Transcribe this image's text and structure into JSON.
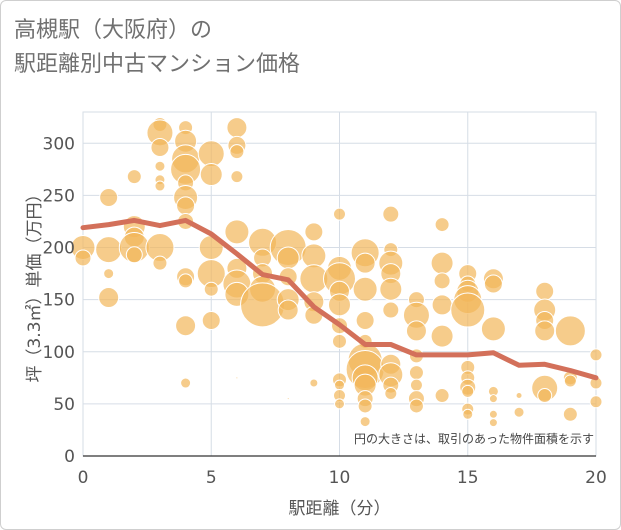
{
  "title_lines": [
    "高槻駅（大阪府）の",
    "駅距離別中古マンション価格"
  ],
  "chart_data": {
    "type": "scatter",
    "xlabel": "駅距離（分）",
    "ylabel": "坪（3.3㎡）単価（万円）",
    "xlim": [
      0,
      20
    ],
    "ylim": [
      0,
      330
    ],
    "xticks": [
      0,
      5,
      10,
      15,
      20
    ],
    "yticks": [
      0,
      50,
      100,
      150,
      200,
      250,
      300
    ],
    "grid": true,
    "note": "円の大きさは、取引のあった物件面積を示す",
    "colors": {
      "bubble": "#f2b65a",
      "line": "#d3705a"
    },
    "series": [
      {
        "kind": "bubble",
        "points": [
          {
            "x": 0,
            "y": 200,
            "s": 12
          },
          {
            "x": 0,
            "y": 190,
            "s": 8
          },
          {
            "x": 1,
            "y": 248,
            "s": 9
          },
          {
            "x": 1,
            "y": 198,
            "s": 13
          },
          {
            "x": 1,
            "y": 175,
            "s": 5
          },
          {
            "x": 1,
            "y": 152,
            "s": 10
          },
          {
            "x": 2,
            "y": 268,
            "s": 7
          },
          {
            "x": 2,
            "y": 220,
            "s": 11
          },
          {
            "x": 2,
            "y": 210,
            "s": 10
          },
          {
            "x": 2,
            "y": 200,
            "s": 15
          },
          {
            "x": 2,
            "y": 193,
            "s": 8
          },
          {
            "x": 3,
            "y": 318,
            "s": 7
          },
          {
            "x": 3,
            "y": 310,
            "s": 13
          },
          {
            "x": 3,
            "y": 296,
            "s": 9
          },
          {
            "x": 3,
            "y": 278,
            "s": 5
          },
          {
            "x": 3,
            "y": 265,
            "s": 5
          },
          {
            "x": 3,
            "y": 259,
            "s": 5
          },
          {
            "x": 3,
            "y": 200,
            "s": 14
          },
          {
            "x": 3,
            "y": 185,
            "s": 7
          },
          {
            "x": 4,
            "y": 315,
            "s": 7
          },
          {
            "x": 4,
            "y": 302,
            "s": 11
          },
          {
            "x": 4,
            "y": 285,
            "s": 14
          },
          {
            "x": 4,
            "y": 275,
            "s": 15
          },
          {
            "x": 4,
            "y": 262,
            "s": 8
          },
          {
            "x": 4,
            "y": 248,
            "s": 12
          },
          {
            "x": 4,
            "y": 240,
            "s": 9
          },
          {
            "x": 4,
            "y": 225,
            "s": 8
          },
          {
            "x": 4,
            "y": 172,
            "s": 9
          },
          {
            "x": 4,
            "y": 168,
            "s": 7
          },
          {
            "x": 4,
            "y": 125,
            "s": 10
          },
          {
            "x": 4,
            "y": 70,
            "s": 5
          },
          {
            "x": 5,
            "y": 290,
            "s": 13
          },
          {
            "x": 5,
            "y": 270,
            "s": 11
          },
          {
            "x": 5,
            "y": 200,
            "s": 12
          },
          {
            "x": 5,
            "y": 175,
            "s": 14
          },
          {
            "x": 5,
            "y": 160,
            "s": 7
          },
          {
            "x": 5,
            "y": 130,
            "s": 9
          },
          {
            "x": 6,
            "y": 315,
            "s": 10
          },
          {
            "x": 6,
            "y": 298,
            "s": 9
          },
          {
            "x": 6,
            "y": 292,
            "s": 7
          },
          {
            "x": 6,
            "y": 268,
            "s": 6
          },
          {
            "x": 6,
            "y": 215,
            "s": 12
          },
          {
            "x": 6,
            "y": 180,
            "s": 10
          },
          {
            "x": 6,
            "y": 165,
            "s": 14
          },
          {
            "x": 6,
            "y": 155,
            "s": 12
          },
          {
            "x": 6,
            "y": 75,
            "s": 1
          },
          {
            "x": 7,
            "y": 205,
            "s": 14
          },
          {
            "x": 7,
            "y": 190,
            "s": 9
          },
          {
            "x": 7,
            "y": 175,
            "s": 10
          },
          {
            "x": 7,
            "y": 160,
            "s": 13
          },
          {
            "x": 7,
            "y": 145,
            "s": 22
          },
          {
            "x": 8,
            "y": 200,
            "s": 18
          },
          {
            "x": 8,
            "y": 190,
            "s": 11
          },
          {
            "x": 8,
            "y": 172,
            "s": 9
          },
          {
            "x": 8,
            "y": 150,
            "s": 11
          },
          {
            "x": 8,
            "y": 140,
            "s": 10
          },
          {
            "x": 8,
            "y": 55,
            "s": 1
          },
          {
            "x": 9,
            "y": 215,
            "s": 9
          },
          {
            "x": 9,
            "y": 192,
            "s": 12
          },
          {
            "x": 9,
            "y": 170,
            "s": 14
          },
          {
            "x": 9,
            "y": 148,
            "s": 10
          },
          {
            "x": 9,
            "y": 135,
            "s": 9
          },
          {
            "x": 9,
            "y": 70,
            "s": 4
          },
          {
            "x": 10,
            "y": 232,
            "s": 6
          },
          {
            "x": 10,
            "y": 180,
            "s": 12
          },
          {
            "x": 10,
            "y": 170,
            "s": 16
          },
          {
            "x": 10,
            "y": 158,
            "s": 10
          },
          {
            "x": 10,
            "y": 145,
            "s": 11
          },
          {
            "x": 10,
            "y": 125,
            "s": 8
          },
          {
            "x": 10,
            "y": 110,
            "s": 7
          },
          {
            "x": 10,
            "y": 73,
            "s": 7
          },
          {
            "x": 10,
            "y": 68,
            "s": 5
          },
          {
            "x": 10,
            "y": 58,
            "s": 6
          },
          {
            "x": 10,
            "y": 50,
            "s": 5
          },
          {
            "x": 11,
            "y": 195,
            "s": 14
          },
          {
            "x": 11,
            "y": 185,
            "s": 10
          },
          {
            "x": 11,
            "y": 160,
            "s": 12
          },
          {
            "x": 11,
            "y": 130,
            "s": 9
          },
          {
            "x": 11,
            "y": 110,
            "s": 7
          },
          {
            "x": 11,
            "y": 92,
            "s": 17
          },
          {
            "x": 11,
            "y": 83,
            "s": 19
          },
          {
            "x": 11,
            "y": 75,
            "s": 13
          },
          {
            "x": 11,
            "y": 68,
            "s": 11
          },
          {
            "x": 11,
            "y": 55,
            "s": 8
          },
          {
            "x": 11,
            "y": 48,
            "s": 7
          },
          {
            "x": 11,
            "y": 33,
            "s": 5
          },
          {
            "x": 12,
            "y": 232,
            "s": 8
          },
          {
            "x": 12,
            "y": 198,
            "s": 7
          },
          {
            "x": 12,
            "y": 185,
            "s": 12
          },
          {
            "x": 12,
            "y": 175,
            "s": 10
          },
          {
            "x": 12,
            "y": 160,
            "s": 11
          },
          {
            "x": 12,
            "y": 140,
            "s": 8
          },
          {
            "x": 12,
            "y": 88,
            "s": 10
          },
          {
            "x": 12,
            "y": 78,
            "s": 12
          },
          {
            "x": 12,
            "y": 68,
            "s": 8
          },
          {
            "x": 12,
            "y": 60,
            "s": 6
          },
          {
            "x": 13,
            "y": 150,
            "s": 8
          },
          {
            "x": 13,
            "y": 135,
            "s": 13
          },
          {
            "x": 13,
            "y": 120,
            "s": 10
          },
          {
            "x": 13,
            "y": 96,
            "s": 7
          },
          {
            "x": 13,
            "y": 80,
            "s": 7
          },
          {
            "x": 13,
            "y": 68,
            "s": 6
          },
          {
            "x": 13,
            "y": 55,
            "s": 8
          },
          {
            "x": 13,
            "y": 48,
            "s": 7
          },
          {
            "x": 14,
            "y": 222,
            "s": 7
          },
          {
            "x": 14,
            "y": 185,
            "s": 11
          },
          {
            "x": 14,
            "y": 168,
            "s": 8
          },
          {
            "x": 14,
            "y": 145,
            "s": 10
          },
          {
            "x": 14,
            "y": 115,
            "s": 11
          },
          {
            "x": 14,
            "y": 58,
            "s": 7
          },
          {
            "x": 15,
            "y": 175,
            "s": 9
          },
          {
            "x": 15,
            "y": 165,
            "s": 8
          },
          {
            "x": 15,
            "y": 158,
            "s": 11
          },
          {
            "x": 15,
            "y": 150,
            "s": 14
          },
          {
            "x": 15,
            "y": 140,
            "s": 17
          },
          {
            "x": 15,
            "y": 85,
            "s": 7
          },
          {
            "x": 15,
            "y": 75,
            "s": 7
          },
          {
            "x": 15,
            "y": 66,
            "s": 8
          },
          {
            "x": 15,
            "y": 62,
            "s": 6
          },
          {
            "x": 15,
            "y": 45,
            "s": 6
          },
          {
            "x": 15,
            "y": 40,
            "s": 5
          },
          {
            "x": 16,
            "y": 170,
            "s": 10
          },
          {
            "x": 16,
            "y": 165,
            "s": 9
          },
          {
            "x": 16,
            "y": 122,
            "s": 12
          },
          {
            "x": 16,
            "y": 62,
            "s": 5
          },
          {
            "x": 16,
            "y": 55,
            "s": 4
          },
          {
            "x": 16,
            "y": 40,
            "s": 4
          },
          {
            "x": 16,
            "y": 32,
            "s": 4
          },
          {
            "x": 17,
            "y": 58,
            "s": 3
          },
          {
            "x": 17,
            "y": 42,
            "s": 5
          },
          {
            "x": 18,
            "y": 158,
            "s": 9
          },
          {
            "x": 18,
            "y": 140,
            "s": 11
          },
          {
            "x": 18,
            "y": 130,
            "s": 9
          },
          {
            "x": 18,
            "y": 120,
            "s": 10
          },
          {
            "x": 18,
            "y": 65,
            "s": 13
          },
          {
            "x": 18,
            "y": 58,
            "s": 7
          },
          {
            "x": 19,
            "y": 120,
            "s": 15
          },
          {
            "x": 19,
            "y": 75,
            "s": 7
          },
          {
            "x": 19,
            "y": 72,
            "s": 6
          },
          {
            "x": 19,
            "y": 40,
            "s": 7
          },
          {
            "x": 20,
            "y": 97,
            "s": 6
          },
          {
            "x": 20,
            "y": 70,
            "s": 6
          },
          {
            "x": 20,
            "y": 52,
            "s": 6
          }
        ]
      },
      {
        "kind": "line",
        "points": [
          {
            "x": 0,
            "y": 219
          },
          {
            "x": 1,
            "y": 222
          },
          {
            "x": 2,
            "y": 226
          },
          {
            "x": 3,
            "y": 221
          },
          {
            "x": 4,
            "y": 226
          },
          {
            "x": 5,
            "y": 213
          },
          {
            "x": 6,
            "y": 194
          },
          {
            "x": 7,
            "y": 174
          },
          {
            "x": 8,
            "y": 169
          },
          {
            "x": 9,
            "y": 143
          },
          {
            "x": 10,
            "y": 126
          },
          {
            "x": 11,
            "y": 107
          },
          {
            "x": 12,
            "y": 107
          },
          {
            "x": 13,
            "y": 97
          },
          {
            "x": 14,
            "y": 97
          },
          {
            "x": 15,
            "y": 97
          },
          {
            "x": 16,
            "y": 99
          },
          {
            "x": 17,
            "y": 87
          },
          {
            "x": 18,
            "y": 88
          },
          {
            "x": 19,
            "y": 82
          },
          {
            "x": 20,
            "y": 75
          }
        ]
      }
    ]
  }
}
